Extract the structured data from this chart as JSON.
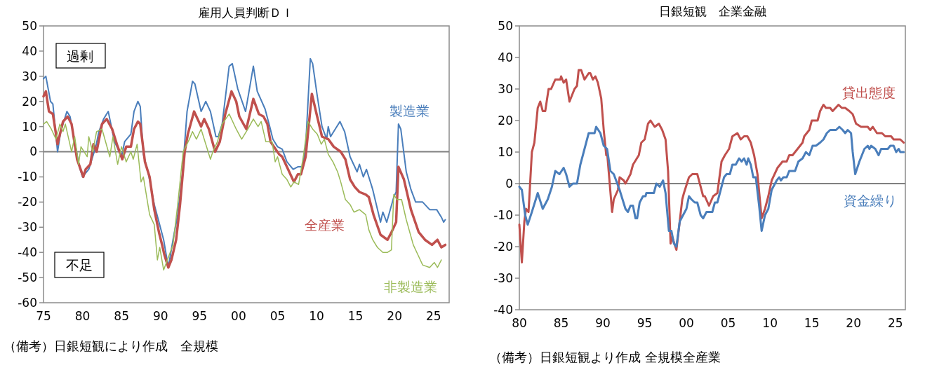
{
  "chart_data": [
    {
      "type": "line",
      "title": "雇用人員判断ＤＩ",
      "xlim": [
        1975,
        2027
      ],
      "ylim": [
        -60,
        50
      ],
      "xticks": [
        {
          "value": 1975,
          "label": "75"
        },
        {
          "value": 1980,
          "label": "80"
        },
        {
          "value": 1985,
          "label": "85"
        },
        {
          "value": 1990,
          "label": "90"
        },
        {
          "value": 1995,
          "label": "95"
        },
        {
          "value": 2000,
          "label": "00"
        },
        {
          "value": 2005,
          "label": "05"
        },
        {
          "value": 2010,
          "label": "10"
        },
        {
          "value": 2015,
          "label": "15"
        },
        {
          "value": 2020,
          "label": "20"
        },
        {
          "value": 2025,
          "label": "25"
        }
      ],
      "yticks": [
        -60,
        -50,
        -40,
        -30,
        -20,
        -10,
        0,
        10,
        20,
        30,
        40,
        50
      ],
      "ref_lines": [
        {
          "axis": "y",
          "value": 0,
          "color": "#808080"
        }
      ],
      "annotations": [
        "過剰",
        "不足",
        "（備考）日銀短観により作成　全規模"
      ],
      "series": [
        {
          "name": "製造業",
          "color": "#4a7ebb",
          "x": [
            1975,
            1975.3,
            1975.9,
            1976.2,
            1976.8,
            1977.2,
            1978,
            1978.4,
            1979,
            1979.6,
            1980,
            1980.8,
            1981.7,
            1982.1,
            1982.7,
            1983.3,
            1984.1,
            1985,
            1985.4,
            1986.2,
            1986.6,
            1987.1,
            1987.4,
            1987.8,
            1988.4,
            1989.2,
            1989.8,
            1990.4,
            1991,
            1991.6,
            1992.2,
            1992.8,
            1993.4,
            1994.1,
            1994.4,
            1995.2,
            1995.8,
            1996.4,
            1997.1,
            1997.4,
            1997.9,
            1998.8,
            1999.2,
            1999.9,
            2000.9,
            2001.9,
            2002.4,
            2003.4,
            2004,
            2004.4,
            2005,
            2005.6,
            2006.2,
            2007,
            2007.6,
            2008.2,
            2008.6,
            2009.2,
            2009.5,
            2010.1,
            2010.7,
            2011.3,
            2011.5,
            2011.8,
            2012.2,
            2013,
            2013.6,
            2014.3,
            2015.2,
            2015.5,
            2016,
            2016.4,
            2017.2,
            2018.2,
            2018.5,
            2019,
            2019.9,
            2020.2,
            2020.5,
            2020.8,
            2021.5,
            2022.1,
            2022.7,
            2023.6,
            2024.5,
            2025.4,
            2026,
            2026.3,
            2026.5
          ],
          "values": [
            29,
            30,
            20,
            19,
            0,
            8,
            16,
            14,
            4,
            -6,
            -10,
            -7,
            2,
            8,
            13,
            16,
            4,
            -2,
            4,
            7,
            16,
            20,
            18,
            -1,
            -8,
            -21,
            -28,
            -35,
            -46,
            -35,
            -25,
            -9,
            16,
            28,
            27,
            16,
            20,
            16,
            6,
            6,
            11,
            34,
            35,
            25,
            16,
            34,
            24,
            17,
            10,
            5,
            2,
            1,
            -4,
            -7,
            -6,
            -6,
            2,
            37,
            35,
            22,
            10,
            5,
            10,
            6,
            8,
            12,
            8,
            -2,
            -8,
            -5,
            -10,
            -7,
            -15,
            -28,
            -24,
            -28,
            -18,
            -16,
            11,
            9,
            -8,
            -15,
            -20,
            -20,
            -23,
            -23,
            -26,
            -28,
            -27
          ]
        },
        {
          "name": "全産業",
          "color": "#c0504d",
          "x": [
            1975,
            1975.3,
            1975.7,
            1976.2,
            1976.8,
            1977.5,
            1978.1,
            1978.6,
            1979.3,
            1980.1,
            1980.4,
            1981,
            1981.4,
            1981.8,
            1982.5,
            1983.1,
            1983.8,
            1984.4,
            1985.1,
            1985.6,
            1986.2,
            1986.6,
            1987.1,
            1987.4,
            1988,
            1988.6,
            1989.2,
            1989.8,
            1990.2,
            1990.5,
            1991,
            1991.4,
            1992,
            1992.5,
            1993.1,
            1993.5,
            1994.3,
            1995.2,
            1995.6,
            1996.2,
            1997,
            1997.6,
            1998.3,
            1999.1,
            1999.7,
            2000.1,
            2001,
            2001.9,
            2002.6,
            2003.2,
            2003.7,
            2004.1,
            2005.2,
            2005.6,
            2006.2,
            2007.1,
            2007.6,
            2008,
            2008.6,
            2009.4,
            2010,
            2010.7,
            2011.5,
            2012.2,
            2013.1,
            2013.7,
            2014.3,
            2014.9,
            2015.5,
            2016.3,
            2016.7,
            2017.3,
            2018.2,
            2019.1,
            2019.6,
            2020.2,
            2020.5,
            2021.2,
            2022.1,
            2023.1,
            2023.9,
            2024.8,
            2025.5,
            2026,
            2026.5
          ],
          "values": [
            22,
            24,
            16,
            15,
            3,
            12,
            14,
            11,
            -3,
            -10,
            -7,
            -5,
            3,
            0,
            11,
            13,
            9,
            3,
            -3,
            2,
            2,
            9,
            12,
            11,
            -4,
            -10,
            -23,
            -32,
            -37,
            -41,
            -46,
            -43,
            -35,
            -21,
            0,
            7,
            16,
            10,
            13,
            9,
            0,
            4,
            15,
            24,
            20,
            14,
            9,
            21,
            15,
            14,
            11,
            4,
            -1,
            -2,
            -6,
            -12,
            -9,
            -9,
            -2,
            23,
            15,
            6,
            5,
            2,
            0,
            -3,
            -11,
            -14,
            -16,
            -17,
            -18,
            -25,
            -33,
            -35,
            -32,
            -28,
            -6,
            -11,
            -23,
            -32,
            -35,
            -37,
            -35,
            -38,
            -37
          ]
        },
        {
          "name": "非製造業",
          "color": "#9bbb59",
          "x": [
            1975,
            1975.4,
            1976,
            1976.6,
            1977.1,
            1977.5,
            1977.8,
            1978.6,
            1979,
            1979.5,
            1979.8,
            1980.6,
            1980.8,
            1981.3,
            1981.8,
            1982.5,
            1983.5,
            1983.9,
            1984.5,
            1985,
            1985.6,
            1986.2,
            1986.5,
            1987,
            1987.5,
            1987.8,
            1988.6,
            1989.2,
            1989.6,
            1989.9,
            1990.4,
            1991,
            1991.6,
            1992.2,
            1992.9,
            1993.7,
            1994.1,
            1994.6,
            1995.2,
            1995.8,
            1996.4,
            1996.7,
            1997.3,
            1997.9,
            1998.8,
            1999.7,
            2000.4,
            2001.2,
            2001.9,
            2002.5,
            2002.9,
            2003.5,
            2004.3,
            2004.7,
            2005,
            2005.6,
            2006.2,
            2006.7,
            2007.1,
            2007.7,
            2008.3,
            2008.9,
            2009.5,
            2010.1,
            2010.6,
            2011,
            2011.5,
            2012.1,
            2012.7,
            2013.1,
            2013.7,
            2014.3,
            2014.8,
            2015.5,
            2016.3,
            2016.7,
            2017.2,
            2017.8,
            2018.5,
            2019.1,
            2019.6,
            2019.9,
            2020.3,
            2020.9,
            2021.5,
            2022.4,
            2023,
            2023.6,
            2024.5,
            2025.1,
            2025.5,
            2026
          ],
          "values": [
            11,
            12,
            9,
            5,
            11,
            8,
            11,
            0,
            6,
            -5,
            2,
            -2,
            6,
            0,
            8,
            9,
            -2,
            6,
            -5,
            2,
            -4,
            0,
            -3,
            3,
            -12,
            -10,
            -25,
            -29,
            -43,
            -38,
            -47,
            -42,
            -37,
            -21,
            0,
            5,
            8,
            5,
            9,
            3,
            -3,
            0,
            4,
            11,
            15,
            9,
            5,
            9,
            13,
            10,
            12,
            4,
            4,
            -4,
            -2,
            -9,
            -11,
            -14,
            -12,
            -13,
            -2,
            12,
            9,
            7,
            3,
            5,
            -1,
            -4,
            -8,
            -12,
            -19,
            -21,
            -24,
            -23,
            -25,
            -31,
            -35,
            -38,
            -40,
            -40,
            -39,
            -17,
            -19,
            -19,
            -27,
            -37,
            -41,
            -45,
            -46,
            -44,
            -46,
            -43
          ]
        }
      ]
    },
    {
      "type": "line",
      "title": "日銀短観　企業金融",
      "xlim": [
        1980,
        2026.2
      ],
      "ylim": [
        -40,
        50
      ],
      "xticks": [
        {
          "value": 1980,
          "label": "80"
        },
        {
          "value": 1985,
          "label": "85"
        },
        {
          "value": 1990,
          "label": "90"
        },
        {
          "value": 1995,
          "label": "95"
        },
        {
          "value": 2000,
          "label": "00"
        },
        {
          "value": 2005,
          "label": "05"
        },
        {
          "value": 2010,
          "label": "10"
        },
        {
          "value": 2015,
          "label": "15"
        },
        {
          "value": 2020,
          "label": "20"
        },
        {
          "value": 2025,
          "label": "25"
        }
      ],
      "yticks": [
        -40,
        -30,
        -20,
        -10,
        0,
        10,
        20,
        30,
        40,
        50
      ],
      "ref_lines": [
        {
          "axis": "y",
          "value": 0,
          "color": "#808080"
        }
      ],
      "annotations": [
        "（備考）日銀短観より作成 全規模全産業"
      ],
      "series": [
        {
          "name": "貸出態度",
          "color": "#c0504d",
          "x": [
            1980,
            1980.3,
            1980.6,
            1980.8,
            1981.1,
            1981.5,
            1981.8,
            1982.2,
            1982.5,
            1982.8,
            1983.1,
            1983.5,
            1983.8,
            1984.3,
            1984.9,
            1985,
            1985.3,
            1985.6,
            1986,
            1986.6,
            1986.9,
            1987.1,
            1987.4,
            1987.8,
            1988.3,
            1988.5,
            1988.8,
            1989.1,
            1989.4,
            1989.8,
            1990.1,
            1990.4,
            1990.5,
            1991.1,
            1991.3,
            1991.8,
            1992,
            1992.5,
            1992.7,
            1993.3,
            1993.6,
            1994.3,
            1994.6,
            1995,
            1995.4,
            1995.7,
            1996.2,
            1996.7,
            1997.1,
            1997.5,
            1997.8,
            1998.1,
            1998.3,
            1998.8,
            1999.5,
            1999.7,
            2000.3,
            2000.7,
            2001.3,
            2002,
            2002.2,
            2002.7,
            2003.2,
            2003.7,
            2004.2,
            2004.6,
            2005.1,
            2005.5,
            2006.1,
            2006.5,
            2006.9,
            2007.3,
            2007.7,
            2008.1,
            2008.5,
            2009,
            2009.4,
            2009.8,
            2010.2,
            2010.9,
            2011.5,
            2012,
            2012.3,
            2012.7,
            2013.3,
            2013.9,
            2014.1,
            2014.7,
            2015,
            2015.7,
            2016,
            2016.4,
            2016.7,
            2017.2,
            2017.5,
            2018.2,
            2018.6,
            2019,
            2019.5,
            2019.9,
            2020.3,
            2020.9,
            2021.7,
            2022,
            2022.3,
            2022.8,
            2023.4,
            2023.8,
            2024.5,
            2024.8,
            2025.6,
            2026
          ],
          "values": [
            -13,
            -25,
            -12,
            -8,
            -9,
            10,
            13,
            24,
            26,
            23,
            23,
            30,
            30,
            33,
            33,
            34,
            32,
            33,
            26,
            30,
            31,
            36,
            36,
            33,
            35,
            35,
            33,
            34,
            32,
            27,
            17,
            9,
            10,
            -9,
            -5,
            -2,
            2,
            1,
            0,
            3,
            6,
            9,
            13,
            14,
            19,
            20,
            18,
            19,
            17,
            14,
            4,
            -19,
            -17,
            -21,
            -5,
            -3,
            2,
            3,
            3,
            -4,
            -4,
            -7,
            -4,
            -3,
            7,
            9,
            11,
            15,
            16,
            14,
            15,
            15,
            13,
            9,
            3,
            -11,
            -8,
            -4,
            1,
            5,
            7,
            7,
            9,
            9,
            11,
            13,
            15,
            17,
            20,
            20,
            23,
            25,
            24,
            24,
            23,
            25,
            24,
            24,
            23,
            22,
            19,
            18,
            18,
            17,
            18,
            16,
            16,
            15,
            15,
            14,
            14,
            13
          ]
        },
        {
          "name": "資金繰り",
          "color": "#4a7ebb",
          "x": [
            1980,
            1980.3,
            1980.7,
            1981,
            1981.5,
            1982.2,
            1982.8,
            1983.4,
            1983.9,
            1984.3,
            1984.8,
            1985.3,
            1985.6,
            1986,
            1986.4,
            1986.9,
            1987.3,
            1987.8,
            1988.3,
            1989,
            1989.2,
            1989.7,
            1990.1,
            1990.5,
            1990.9,
            1991.3,
            1992,
            1992.7,
            1993,
            1993.3,
            1993.6,
            1993.9,
            1994.1,
            1994.4,
            1994.8,
            1995.1,
            1995.2,
            1996.1,
            1996.4,
            1996.8,
            1997.2,
            1997.5,
            1997.9,
            1998.2,
            1998.5,
            1998.8,
            1999.2,
            1999.6,
            2000,
            2000.3,
            2000.6,
            2001,
            2001.3,
            2001.7,
            2002,
            2002.4,
            2003.1,
            2003.4,
            2003.7,
            2004.1,
            2004.5,
            2004.8,
            2005.2,
            2005.5,
            2005.9,
            2006.3,
            2006.6,
            2006.9,
            2007.2,
            2007.4,
            2007.7,
            2008,
            2008.3,
            2008.7,
            2009,
            2009.4,
            2009.8,
            2010.2,
            2010.8,
            2011.1,
            2011.3,
            2011.6,
            2012,
            2012.3,
            2013,
            2013.4,
            2013.9,
            2014.3,
            2014.7,
            2015.1,
            2015.5,
            2016,
            2016.4,
            2016.8,
            2017.2,
            2017.9,
            2018.3,
            2018.7,
            2019,
            2019.3,
            2019.7,
            2019.9,
            2020.2,
            2020.7,
            2021.3,
            2021.7,
            2021.9,
            2022.1,
            2022.6,
            2023,
            2023.3,
            2024.1,
            2024.4,
            2024.8,
            2025.1,
            2025.4,
            2025.6,
            2026
          ],
          "values": [
            -1,
            -2,
            -10,
            -13,
            -9,
            -3,
            -8,
            -5,
            -1,
            4,
            3,
            5,
            3,
            -1,
            0,
            0,
            6,
            11,
            16,
            16,
            18,
            16,
            12,
            11,
            4,
            3,
            -2,
            -8,
            -9,
            -7,
            -7,
            -11,
            -11,
            -6,
            -4,
            -4,
            -3,
            -3,
            0,
            -1,
            1,
            -3,
            -15,
            -15,
            -19,
            -20,
            -12,
            -10,
            -8,
            -4,
            -5,
            -6,
            -6,
            -10,
            -11,
            -9,
            -9,
            -6,
            -6,
            -2,
            2,
            3,
            3,
            6,
            6,
            8,
            7,
            8,
            6,
            8,
            6,
            2,
            2,
            -7,
            -15,
            -10,
            -8,
            -2,
            1,
            2,
            1,
            2,
            2,
            4,
            4,
            7,
            8,
            10,
            9,
            12,
            12,
            13,
            14,
            16,
            17,
            17,
            18,
            17,
            16,
            17,
            16,
            10,
            3,
            7,
            11,
            12,
            11,
            12,
            11,
            9,
            11,
            11,
            12,
            12,
            10,
            11,
            10,
            10
          ]
        }
      ]
    }
  ]
}
